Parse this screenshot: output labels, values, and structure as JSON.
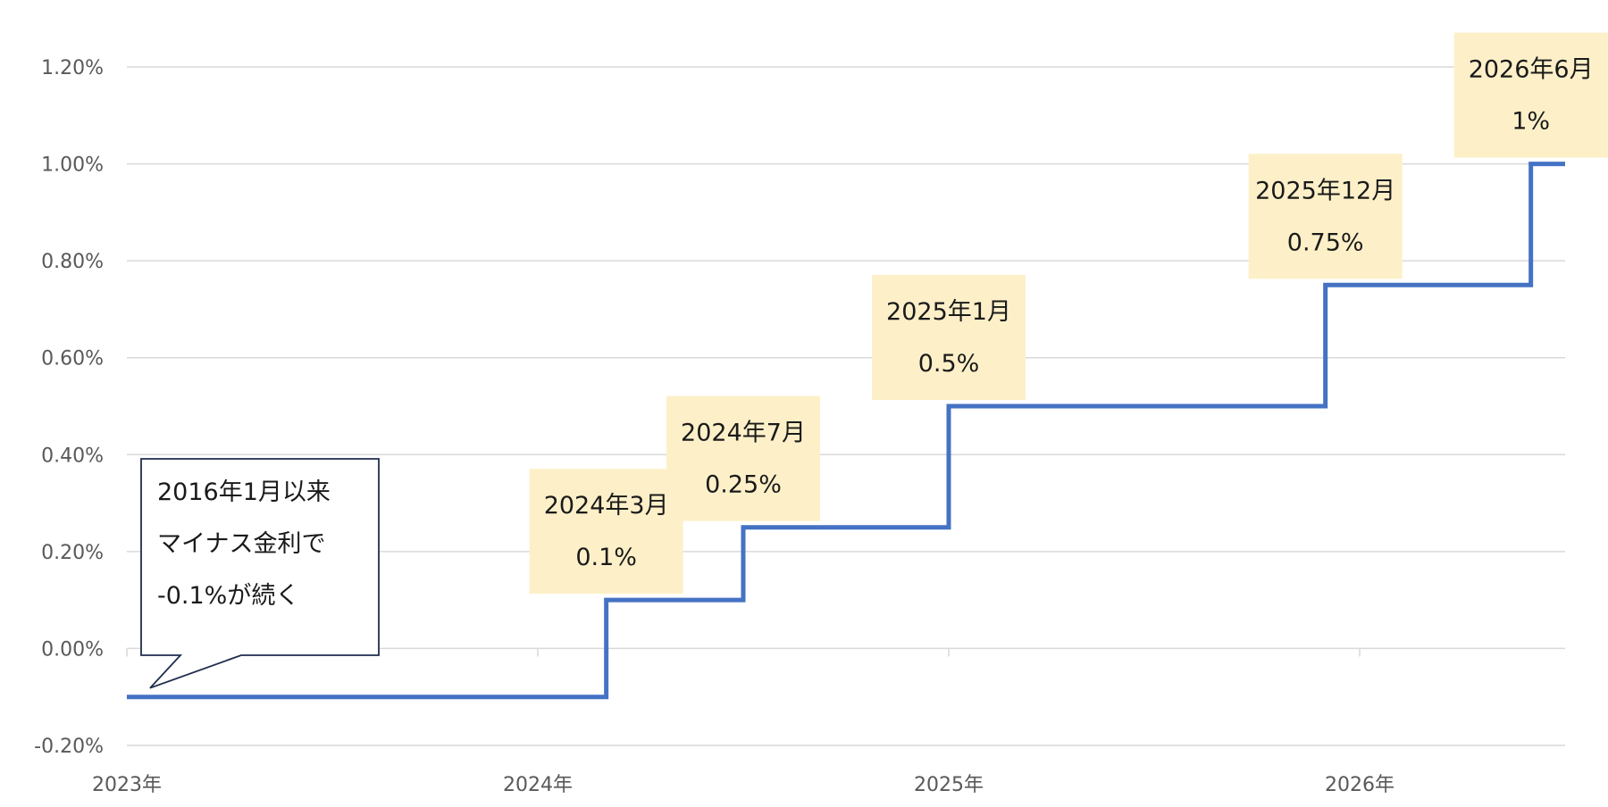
{
  "chart_data": {
    "type": "line",
    "step": true,
    "x_labels": [
      "2023年",
      "2024年",
      "2025年",
      "2026年"
    ],
    "x_domain": [
      "2023-01",
      "2026-07"
    ],
    "ylim": [
      -0.2,
      1.2
    ],
    "y_ticks": [
      "1.20%",
      "1.00%",
      "0.80%",
      "0.60%",
      "0.40%",
      "0.20%",
      "0.00%",
      "-0.20%"
    ],
    "grid": true,
    "line_color": "#4472c4",
    "series": [
      {
        "points": [
          {
            "x": "2023-01",
            "y": -0.1
          },
          {
            "x": "2024-03",
            "y": 0.1
          },
          {
            "x": "2024-07",
            "y": 0.25
          },
          {
            "x": "2025-01",
            "y": 0.5
          },
          {
            "x": "2025-12",
            "y": 0.75
          },
          {
            "x": "2026-06",
            "y": 1.0
          },
          {
            "x": "2026-07",
            "y": 1.0
          }
        ]
      }
    ],
    "annotations": [
      {
        "date_label": "2024年3月",
        "value_label": "0.1%"
      },
      {
        "date_label": "2024年7月",
        "value_label": "0.25%"
      },
      {
        "date_label": "2025年1月",
        "value_label": "0.5%"
      },
      {
        "date_label": "2025年12月",
        "value_label": "0.75%"
      },
      {
        "date_label": "2026年6月",
        "value_label": "1%"
      }
    ],
    "callout": {
      "lines": [
        "2016年1月以来",
        "マイナス金利で",
        "-0.1%が続く"
      ]
    },
    "annotation_bg": "#fdf0c8"
  }
}
